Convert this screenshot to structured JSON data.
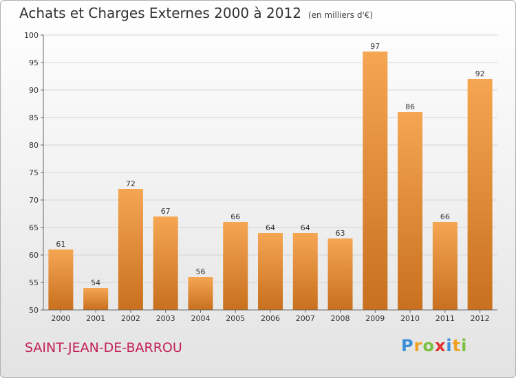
{
  "header": {
    "title": "Achats et Charges Externes 2000 à 2012",
    "subtitle": "(en milliers d'€)"
  },
  "footer": {
    "commune": "SAINT-JEAN-DE-BARROU",
    "logo": "Proxiti"
  },
  "colors": {
    "bar_top": "#f5a653",
    "bar_bottom": "#c8701e",
    "commune": "#c2205a"
  },
  "chart_data": {
    "type": "bar",
    "title": "Achats et Charges Externes 2000 à 2012",
    "subtitle": "(en milliers d'€)",
    "categories": [
      "2000",
      "2001",
      "2002",
      "2003",
      "2004",
      "2005",
      "2006",
      "2007",
      "2008",
      "2009",
      "2010",
      "2011",
      "2012"
    ],
    "values": [
      61,
      54,
      72,
      67,
      56,
      66,
      64,
      64,
      63,
      97,
      86,
      66,
      92
    ],
    "ylim": [
      50,
      100
    ],
    "yticks": [
      50,
      55,
      60,
      65,
      70,
      75,
      80,
      85,
      90,
      95,
      100
    ],
    "grid": true,
    "xlabel": "",
    "ylabel": ""
  }
}
